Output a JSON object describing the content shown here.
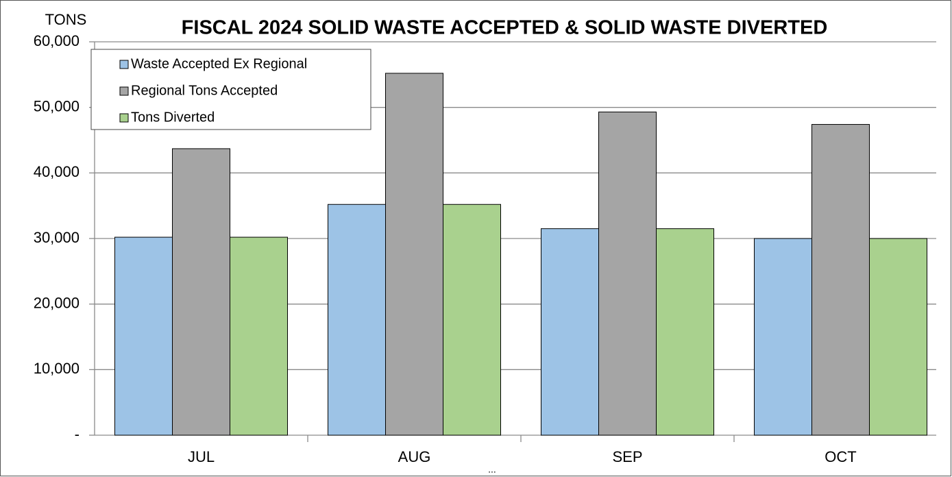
{
  "chart_data": {
    "type": "bar",
    "title": "FISCAL 2024 SOLID WASTE ACCEPTED & SOLID WASTE DIVERTED",
    "y_label": "TONS",
    "annotation": "...",
    "categories": [
      "JUL",
      "AUG",
      "SEP",
      "OCT"
    ],
    "series": [
      {
        "name": "Waste Accepted Ex Regional",
        "color": "#9dc3e6",
        "values": [
          30200,
          35200,
          31500,
          30000
        ]
      },
      {
        "name": "Regional Tons Accepted",
        "color": "#a5a5a5",
        "values": [
          43700,
          55200,
          49300,
          47400
        ]
      },
      {
        "name": "Tons Diverted",
        "color": "#a9d18e",
        "values": [
          30200,
          35200,
          31500,
          30000
        ]
      }
    ],
    "ylim": [
      0,
      60000
    ],
    "yticks": [
      {
        "value": 0,
        "label": "-"
      },
      {
        "value": 10000,
        "label": "10,000"
      },
      {
        "value": 20000,
        "label": "20,000"
      },
      {
        "value": 30000,
        "label": "30,000"
      },
      {
        "value": 40000,
        "label": "40,000"
      },
      {
        "value": 50000,
        "label": "50,000"
      },
      {
        "value": 60000,
        "label": "60,000"
      }
    ],
    "grid": true,
    "legend": "upper left"
  }
}
